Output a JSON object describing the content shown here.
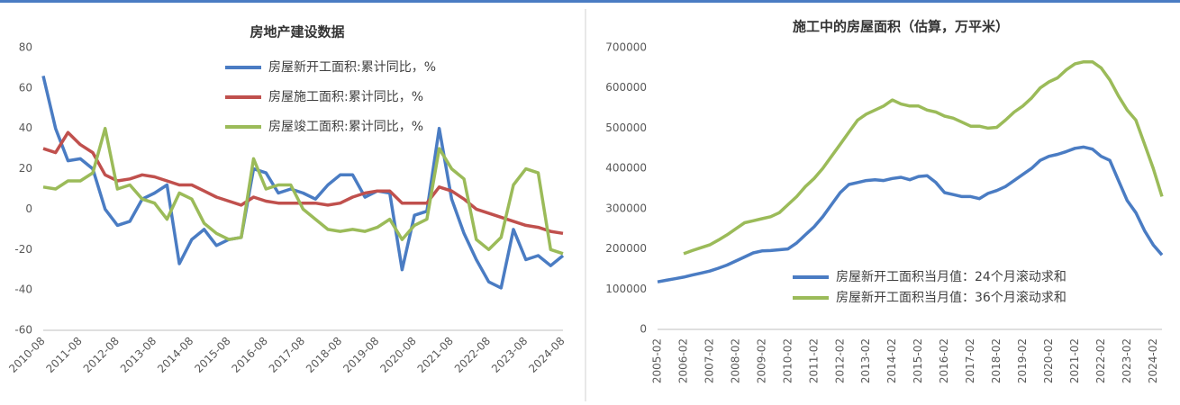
{
  "chart_data": [
    {
      "type": "line",
      "title": "房地产建设数据",
      "categories": [
        "2010-08",
        null,
        null,
        "2011-08",
        null,
        null,
        "2012-08",
        null,
        null,
        "2013-08",
        null,
        null,
        "2014-08",
        null,
        null,
        "2015-08",
        null,
        null,
        "2016-08",
        null,
        null,
        "2017-08",
        null,
        null,
        "2018-08",
        null,
        null,
        "2019-08",
        null,
        null,
        "2020-08",
        null,
        null,
        "2021-08",
        null,
        null,
        "2022-08",
        null,
        null,
        "2023-08",
        null,
        null,
        "2024-08"
      ],
      "series": [
        {
          "name": "房屋新开工面积:累计同比，%",
          "color": "#4a7cc3",
          "values": [
            66,
            40,
            24,
            25,
            20,
            0,
            -8,
            -6,
            5,
            8,
            12,
            -27,
            -15,
            -10,
            -18,
            -15,
            -14,
            20,
            18,
            8,
            10,
            8,
            5,
            12,
            17,
            17,
            6,
            9,
            8,
            -30,
            -3,
            -1,
            40,
            5,
            -12,
            -25,
            -36,
            -39,
            -10,
            -25,
            -23,
            -28,
            -23
          ]
        },
        {
          "name": "房屋施工面积:累计同比，%",
          "color": "#c0504d",
          "values": [
            30,
            28,
            38,
            32,
            28,
            17,
            14,
            15,
            17,
            16,
            14,
            12,
            12,
            9,
            6,
            4,
            2,
            6,
            4,
            3,
            3,
            3,
            3,
            2,
            3,
            6,
            8,
            9,
            9,
            3,
            3,
            3,
            11,
            9,
            5,
            0,
            -2,
            -4,
            -6,
            -8,
            -9,
            -11,
            -12
          ]
        },
        {
          "name": "房屋竣工面积:累计同比，%",
          "color": "#9bbb59",
          "values": [
            11,
            10,
            14,
            14,
            18,
            40,
            10,
            12,
            5,
            3,
            -5,
            8,
            5,
            -7,
            -12,
            -15,
            -14,
            25,
            10,
            12,
            12,
            0,
            -5,
            -10,
            -11,
            -10,
            -11,
            -9,
            -5,
            -15,
            -8,
            -5,
            30,
            20,
            15,
            -15,
            -20,
            -14,
            12,
            20,
            18,
            -20,
            -22
          ]
        }
      ],
      "ylim": [
        -60,
        80
      ],
      "yticks": [
        -60,
        -40,
        -20,
        0,
        20,
        40,
        60,
        80
      ],
      "legend": "top"
    },
    {
      "type": "line",
      "title": "施工中的房屋面积（估算，万平米）",
      "categories": [
        "2005-02",
        null,
        null,
        "2006-02",
        null,
        null,
        "2007-02",
        null,
        null,
        "2008-02",
        null,
        null,
        "2009-02",
        null,
        null,
        "2010-02",
        null,
        null,
        "2011-02",
        null,
        null,
        "2012-02",
        null,
        null,
        "2013-02",
        null,
        null,
        "2014-02",
        null,
        null,
        "2015-02",
        null,
        null,
        "2016-02",
        null,
        null,
        "2017-02",
        null,
        null,
        "2018-02",
        null,
        null,
        "2019-02",
        null,
        null,
        "2020-02",
        null,
        null,
        "2021-02",
        null,
        null,
        "2022-02",
        null,
        null,
        "2023-02",
        null,
        null,
        "2024-02",
        null
      ],
      "series": [
        {
          "name": "房屋新开工面积当月值：24个月滚动求和",
          "color": "#4a7cc3",
          "values": [
            118000,
            122000,
            126000,
            130000,
            135000,
            140000,
            145000,
            152000,
            160000,
            170000,
            180000,
            190000,
            195000,
            196000,
            198000,
            200000,
            215000,
            235000,
            255000,
            280000,
            310000,
            340000,
            360000,
            365000,
            370000,
            372000,
            370000,
            375000,
            378000,
            372000,
            380000,
            382000,
            365000,
            340000,
            335000,
            330000,
            330000,
            325000,
            338000,
            345000,
            355000,
            370000,
            385000,
            400000,
            420000,
            430000,
            435000,
            442000,
            450000,
            453000,
            448000,
            430000,
            420000,
            370000,
            320000,
            290000,
            245000,
            210000,
            185000
          ]
        },
        {
          "name": "房屋新开工面积当月值：36个月滚动求和",
          "color": "#9bbb59",
          "values": [
            null,
            null,
            null,
            188000,
            196000,
            203000,
            210000,
            222000,
            235000,
            250000,
            265000,
            270000,
            275000,
            280000,
            290000,
            310000,
            330000,
            355000,
            375000,
            400000,
            430000,
            460000,
            490000,
            520000,
            535000,
            545000,
            555000,
            570000,
            560000,
            555000,
            555000,
            545000,
            540000,
            530000,
            525000,
            515000,
            505000,
            505000,
            500000,
            502000,
            520000,
            540000,
            555000,
            575000,
            600000,
            615000,
            625000,
            645000,
            660000,
            665000,
            665000,
            650000,
            620000,
            580000,
            545000,
            520000,
            460000,
            400000,
            330000
          ]
        }
      ],
      "ylim": [
        0,
        700000
      ],
      "yticks": [
        0,
        100000,
        200000,
        300000,
        400000,
        500000,
        600000,
        700000
      ],
      "legend": "bottom"
    }
  ]
}
